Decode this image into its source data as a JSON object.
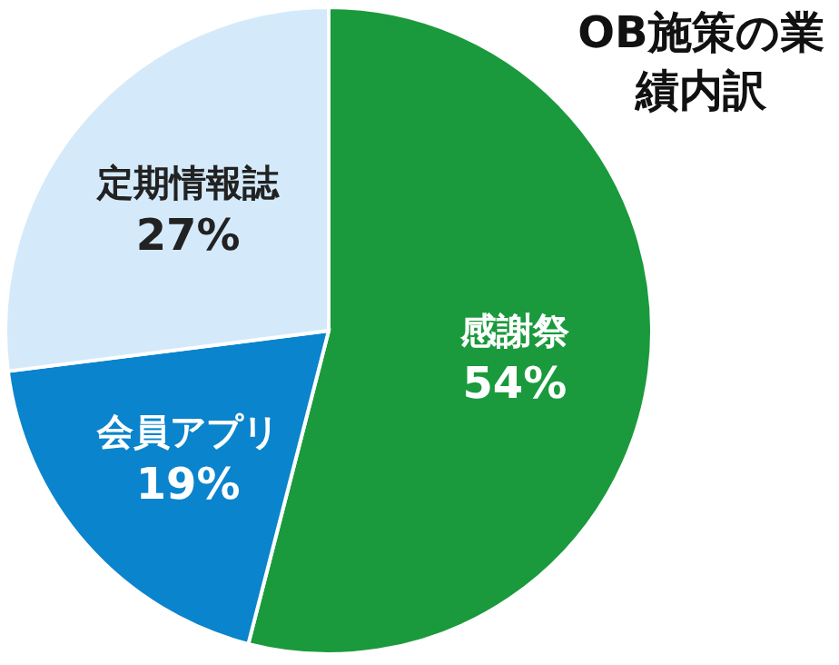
{
  "chart_data": {
    "type": "pie",
    "title": "OB施策の業績内訳",
    "categories": [
      "感謝祭",
      "会員アプリ",
      "定期情報誌"
    ],
    "values": [
      54,
      19,
      27
    ],
    "value_labels": [
      "54%",
      "19%",
      "27%"
    ],
    "colors": [
      "#1a9a3c",
      "#0a84cc",
      "#d4eafa"
    ]
  }
}
